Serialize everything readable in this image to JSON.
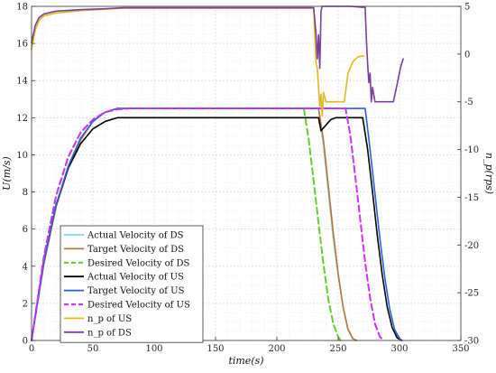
{
  "chart_data": {
    "type": "line",
    "xlabel": "time(s)",
    "ylabel_left": "U(m/s)",
    "ylabel_right": "n_p(rps)",
    "xlim": [
      0,
      350
    ],
    "ylim_left": [
      0,
      18
    ],
    "ylim_right": [
      -30,
      5
    ],
    "x_ticks": [
      0,
      50,
      100,
      150,
      200,
      250,
      300,
      350
    ],
    "y_left_ticks": [
      0,
      2,
      4,
      6,
      8,
      10,
      12,
      14,
      16,
      18
    ],
    "y_right_ticks": [
      -30,
      -25,
      -20,
      -15,
      -10,
      -5,
      0,
      5
    ],
    "grid": true,
    "legend_position": "lower-left",
    "series": [
      {
        "name": "Actual Velocity of DS",
        "color": "#7fd8f0",
        "style": "solid",
        "axis": "left",
        "points": [
          [
            0,
            0
          ],
          [
            10,
            4.2
          ],
          [
            20,
            7.3
          ],
          [
            30,
            9.4
          ],
          [
            40,
            10.9
          ],
          [
            50,
            11.8
          ],
          [
            60,
            12.3
          ],
          [
            70,
            12.5
          ],
          [
            234,
            12.5
          ],
          [
            238,
            10.5
          ],
          [
            242,
            8.0
          ],
          [
            246,
            5.5
          ],
          [
            250,
            3.5
          ],
          [
            254,
            1.8
          ],
          [
            258,
            0.6
          ],
          [
            262,
            0.1
          ],
          [
            265,
            0
          ]
        ]
      },
      {
        "name": "Target Velocity of DS",
        "color": "#b5763c",
        "style": "solid",
        "axis": "left",
        "points": [
          [
            0,
            0
          ],
          [
            10,
            4.1
          ],
          [
            20,
            7.2
          ],
          [
            30,
            9.3
          ],
          [
            40,
            10.8
          ],
          [
            50,
            11.8
          ],
          [
            60,
            12.3
          ],
          [
            70,
            12.5
          ],
          [
            234,
            12.5
          ],
          [
            238,
            10.8
          ],
          [
            242,
            8.3
          ],
          [
            246,
            5.8
          ],
          [
            250,
            3.6
          ],
          [
            254,
            1.8
          ],
          [
            258,
            0.6
          ],
          [
            262,
            0.1
          ],
          [
            265,
            0
          ]
        ]
      },
      {
        "name": "Desired Velocity of DS",
        "color": "#66cc33",
        "style": "dashed",
        "axis": "left",
        "points": [
          [
            0,
            0
          ],
          [
            10,
            4.5
          ],
          [
            20,
            7.8
          ],
          [
            30,
            9.9
          ],
          [
            40,
            11.2
          ],
          [
            50,
            11.9
          ],
          [
            60,
            12.3
          ],
          [
            70,
            12.45
          ],
          [
            80,
            12.5
          ],
          [
            222,
            12.5
          ],
          [
            226,
            10.8
          ],
          [
            230,
            8.6
          ],
          [
            234,
            6.3
          ],
          [
            238,
            4.1
          ],
          [
            242,
            2.2
          ],
          [
            246,
            0.9
          ],
          [
            250,
            0.2
          ],
          [
            252,
            0
          ]
        ]
      },
      {
        "name": "Actual Velocity of US",
        "color": "#000000",
        "style": "solid",
        "axis": "left",
        "points": [
          [
            0,
            0
          ],
          [
            10,
            4.3
          ],
          [
            20,
            7.3
          ],
          [
            30,
            9.3
          ],
          [
            40,
            10.6
          ],
          [
            50,
            11.4
          ],
          [
            60,
            11.8
          ],
          [
            70,
            12.0
          ],
          [
            234,
            12.0
          ],
          [
            236,
            11.3
          ],
          [
            240,
            11.6
          ],
          [
            244,
            11.9
          ],
          [
            248,
            12.0
          ],
          [
            270,
            12.0
          ],
          [
            274,
            10.3
          ],
          [
            278,
            8.0
          ],
          [
            282,
            5.6
          ],
          [
            286,
            3.5
          ],
          [
            290,
            1.8
          ],
          [
            294,
            0.7
          ],
          [
            298,
            0.15
          ],
          [
            302,
            0
          ]
        ]
      },
      {
        "name": "Target Velocity of US",
        "color": "#2a5fd6",
        "style": "solid",
        "axis": "left",
        "points": [
          [
            0,
            0
          ],
          [
            10,
            4.2
          ],
          [
            20,
            7.3
          ],
          [
            30,
            9.4
          ],
          [
            40,
            10.9
          ],
          [
            50,
            11.8
          ],
          [
            60,
            12.3
          ],
          [
            70,
            12.5
          ],
          [
            272,
            12.5
          ],
          [
            276,
            10.3
          ],
          [
            280,
            7.9
          ],
          [
            284,
            5.5
          ],
          [
            288,
            3.4
          ],
          [
            292,
            1.7
          ],
          [
            296,
            0.6
          ],
          [
            300,
            0.1
          ],
          [
            302,
            0
          ]
        ]
      },
      {
        "name": "Desired Velocity of US",
        "color": "#cc33ff",
        "style": "dashed",
        "axis": "left",
        "points": [
          [
            0,
            0
          ],
          [
            10,
            4.5
          ],
          [
            20,
            7.8
          ],
          [
            30,
            9.9
          ],
          [
            40,
            11.2
          ],
          [
            50,
            11.9
          ],
          [
            60,
            12.3
          ],
          [
            70,
            12.45
          ],
          [
            80,
            12.5
          ],
          [
            256,
            12.5
          ],
          [
            260,
            11.0
          ],
          [
            264,
            8.8
          ],
          [
            268,
            6.5
          ],
          [
            272,
            4.2
          ],
          [
            276,
            2.3
          ],
          [
            280,
            0.9
          ],
          [
            284,
            0.2
          ],
          [
            287,
            0
          ]
        ]
      },
      {
        "name": "n_p of US",
        "color": "#e0b820",
        "style": "solid",
        "axis": "right",
        "points": [
          [
            0,
            0.5
          ],
          [
            3,
            2.5
          ],
          [
            6,
            3.5
          ],
          [
            10,
            4.0
          ],
          [
            20,
            4.3
          ],
          [
            40,
            4.55
          ],
          [
            60,
            4.7
          ],
          [
            75,
            4.8
          ],
          [
            230,
            4.8
          ],
          [
            231,
            2.0
          ],
          [
            232,
            -1.0
          ],
          [
            233,
            -1.5
          ],
          [
            234,
            -3.5
          ],
          [
            235,
            -5.5
          ],
          [
            236,
            -4.2
          ],
          [
            237,
            -6.5
          ],
          [
            238,
            -4.0
          ],
          [
            240,
            -5.0
          ],
          [
            250,
            -5.0
          ],
          [
            255,
            -5.0
          ],
          [
            258,
            -2.0
          ],
          [
            262,
            -0.8
          ],
          [
            266,
            -0.3
          ],
          [
            270,
            -0.2
          ],
          [
            271,
            -0.2
          ]
        ]
      },
      {
        "name": "n_p of DS",
        "color": "#7b3fa0",
        "style": "solid",
        "axis": "right",
        "points": [
          [
            0,
            1.2
          ],
          [
            3,
            3.0
          ],
          [
            6,
            3.8
          ],
          [
            10,
            4.2
          ],
          [
            20,
            4.5
          ],
          [
            40,
            4.65
          ],
          [
            60,
            4.75
          ],
          [
            75,
            4.85
          ],
          [
            230,
            4.85
          ],
          [
            232,
            2.0
          ],
          [
            233,
            -0.5
          ],
          [
            234,
            2.0
          ],
          [
            235,
            -1.5
          ],
          [
            236,
            4.5
          ],
          [
            237,
            5.0
          ],
          [
            260,
            5.0
          ],
          [
            270,
            4.9
          ],
          [
            272,
            4.9
          ],
          [
            273,
            1.5
          ],
          [
            274,
            -1.0
          ],
          [
            275,
            -3.0
          ],
          [
            276,
            -2.0
          ],
          [
            277,
            -5.0
          ],
          [
            278,
            -3.5
          ],
          [
            280,
            -5.0
          ],
          [
            282,
            -5.0
          ],
          [
            295,
            -5.0
          ],
          [
            298,
            -3.2
          ],
          [
            301,
            -1.3
          ],
          [
            303,
            -0.5
          ]
        ]
      }
    ]
  }
}
